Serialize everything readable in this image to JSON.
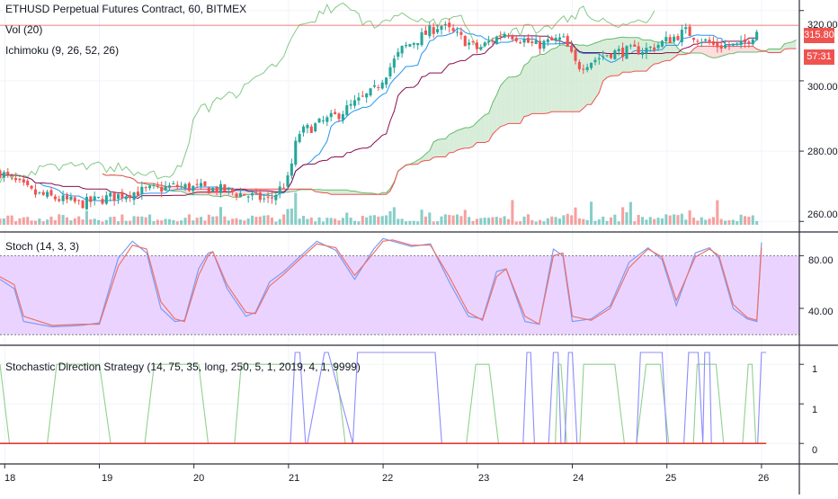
{
  "chart": {
    "title": "ETHUSD Perpetual Futures Contract, 60, BITMEX",
    "vol_label": "Vol (20)",
    "ichimoku_label": "Ichimoku (9, 26, 52, 26)",
    "stoch_label": "Stoch (14, 3, 3)",
    "strategy_label": "Stochastic Direction Strategy (14, 75, 35, long, 250, 5, 1, 2019, 4, 1, 9999)",
    "last_price": "315.80",
    "countdown": "57:31",
    "colors": {
      "up": "#26a69a",
      "down": "#ef5350",
      "stoch_k": "#7b9cf5",
      "stoch_d": "#f0706a",
      "stoch_band": "#e6ccff",
      "cloud_green": "#c8e6c9",
      "cloud_red": "#ffcdd2",
      "strategy_green": "#8fd18f",
      "strategy_blue": "#8c8cff",
      "strategy_red": "#e53935"
    }
  },
  "chart_data": [
    {
      "type": "candlestick",
      "title": "ETHUSD Perpetual Futures Contract, 60, BITMEX",
      "x_ticks": [
        "18",
        "19",
        "20",
        "21",
        "22",
        "23",
        "24",
        "25",
        "26"
      ],
      "y_ticks": [
        "260.00",
        "280.00",
        "300.00",
        "320.00"
      ],
      "ylim": [
        257,
        323
      ],
      "last_price": 315.8,
      "grid": true,
      "close_path_approx": [
        {
          "day": 17.95,
          "close": 274
        },
        {
          "day": 18.3,
          "close": 268
        },
        {
          "day": 18.8,
          "close": 265
        },
        {
          "day": 19.3,
          "close": 268
        },
        {
          "day": 19.8,
          "close": 270
        },
        {
          "day": 20.3,
          "close": 269
        },
        {
          "day": 20.8,
          "close": 266
        },
        {
          "day": 21.0,
          "close": 272
        },
        {
          "day": 21.1,
          "close": 285
        },
        {
          "day": 21.5,
          "close": 290
        },
        {
          "day": 21.9,
          "close": 297
        },
        {
          "day": 22.2,
          "close": 309
        },
        {
          "day": 22.6,
          "close": 316
        },
        {
          "day": 23.0,
          "close": 309
        },
        {
          "day": 23.3,
          "close": 314
        },
        {
          "day": 23.6,
          "close": 310
        },
        {
          "day": 23.9,
          "close": 312
        },
        {
          "day": 24.05,
          "close": 304
        },
        {
          "day": 24.4,
          "close": 308
        },
        {
          "day": 24.8,
          "close": 309
        },
        {
          "day": 25.2,
          "close": 314
        },
        {
          "day": 25.5,
          "close": 310
        },
        {
          "day": 25.8,
          "close": 310
        },
        {
          "day": 26.0,
          "close": 315.8
        }
      ]
    },
    {
      "type": "line",
      "title": "Stoch (14, 3, 3)",
      "x_ticks": [
        "18",
        "19",
        "20",
        "21",
        "22",
        "23",
        "24",
        "25",
        "26"
      ],
      "y_ticks": [
        "40.00",
        "80.00"
      ],
      "ylim": [
        12,
        98
      ],
      "bands": [
        20,
        80
      ],
      "series": [
        {
          "x": [
            17.95,
            18.1,
            18.2,
            18.5,
            18.8,
            19.0,
            19.2,
            19.35,
            19.5,
            19.65,
            19.8,
            19.9,
            20.05,
            20.15,
            20.2,
            20.35,
            20.55,
            20.65,
            20.8,
            20.95,
            21.1,
            21.3,
            21.5,
            21.7,
            21.9,
            22.0,
            22.1,
            22.3,
            22.5,
            22.7,
            22.9,
            23.05,
            23.2,
            23.3,
            23.5,
            23.65,
            23.8,
            23.9,
            24.0,
            24.2,
            24.4,
            24.6,
            24.8,
            24.95,
            25.1,
            25.3,
            25.45,
            25.55,
            25.7,
            25.85,
            25.95,
            26.0
          ],
          "values": [
            62,
            55,
            30,
            26,
            27,
            29,
            78,
            91,
            82,
            40,
            30,
            31,
            70,
            82,
            83,
            55,
            34,
            37,
            60,
            68,
            78,
            91,
            84,
            62,
            85,
            93,
            91,
            87,
            89,
            60,
            34,
            32,
            68,
            70,
            30,
            28,
            85,
            80,
            30,
            32,
            42,
            75,
            86,
            77,
            42,
            82,
            86,
            78,
            40,
            32,
            30,
            90
          ]
        },
        {
          "x": [
            17.95,
            18.1,
            18.2,
            18.5,
            18.8,
            19.0,
            19.2,
            19.35,
            19.5,
            19.65,
            19.8,
            19.9,
            20.05,
            20.15,
            20.2,
            20.35,
            20.55,
            20.65,
            20.8,
            20.95,
            21.1,
            21.3,
            21.5,
            21.7,
            21.9,
            22.0,
            22.1,
            22.3,
            22.5,
            22.7,
            22.9,
            23.05,
            23.2,
            23.3,
            23.5,
            23.65,
            23.8,
            23.9,
            24.0,
            24.2,
            24.4,
            24.6,
            24.8,
            24.95,
            25.1,
            25.3,
            25.45,
            25.55,
            25.7,
            25.85,
            25.95,
            26.0
          ],
          "values": [
            64,
            58,
            34,
            27,
            28,
            28,
            72,
            88,
            85,
            45,
            32,
            30,
            65,
            80,
            83,
            58,
            37,
            36,
            57,
            66,
            76,
            89,
            86,
            65,
            82,
            91,
            92,
            88,
            88,
            64,
            37,
            31,
            64,
            70,
            34,
            28,
            80,
            82,
            34,
            31,
            40,
            71,
            85,
            79,
            46,
            79,
            85,
            80,
            43,
            33,
            31,
            86
          ]
        }
      ]
    },
    {
      "type": "line",
      "title": "Stochastic Direction Strategy (14, 75, 35, long, 250, 5, 1, 2019, 4, 1, 9999)",
      "x_ticks": [
        "18",
        "19",
        "20",
        "21",
        "22",
        "23",
        "24",
        "25",
        "26"
      ],
      "y_ticks": [
        "0",
        "1"
      ],
      "ylim": [
        -0.1,
        1.15
      ],
      "series": [
        {
          "x": [
            17.95,
            18.05,
            18.45,
            18.55,
            19.0,
            19.12,
            19.48,
            19.58,
            20.05,
            20.15,
            20.43,
            20.5,
            21.5,
            21.6,
            22.88,
            22.98,
            23.12,
            23.22,
            23.82,
            23.85,
            23.88,
            23.94,
            24.08,
            24.12,
            24.45,
            24.55,
            24.68,
            24.78,
            24.93,
            25.02,
            25.28,
            25.32,
            25.52,
            25.6,
            25.8,
            25.86,
            25.9,
            25.94,
            26.05
          ],
          "values": [
            1,
            0,
            0,
            1,
            1,
            0,
            0,
            1,
            1,
            0,
            0,
            1,
            1,
            0,
            0,
            1,
            1,
            0,
            0,
            1,
            1,
            0,
            0,
            1,
            1,
            0,
            0,
            1,
            1,
            0,
            0,
            1,
            1,
            0,
            0,
            1,
            1,
            0,
            0
          ]
        },
        {
          "x": [
            17.95,
            21.02,
            21.07,
            21.12,
            21.18,
            21.2,
            21.38,
            21.42,
            21.68,
            21.73,
            22.55,
            22.62,
            23.48,
            23.52,
            23.56,
            23.6,
            23.75,
            23.8,
            23.85,
            23.88,
            23.92,
            23.96,
            24.0,
            24.05,
            24.68,
            24.72,
            24.95,
            25.0,
            25.18,
            25.23,
            25.33,
            25.38,
            25.4,
            25.45,
            25.47,
            25.53,
            25.96,
            26.0,
            26.05
          ],
          "values": [
            0,
            0,
            1.15,
            1.15,
            0,
            0,
            1.15,
            1.15,
            0,
            1.15,
            1.15,
            0,
            0,
            1.15,
            1.15,
            0,
            0,
            1.15,
            1.15,
            0,
            0,
            1.15,
            1.15,
            0,
            0,
            1.15,
            1.15,
            0,
            0,
            1.15,
            1.15,
            0,
            1.15,
            1.15,
            0,
            0,
            0,
            1.15,
            1.15
          ]
        },
        {
          "x": [
            17.95,
            26.05
          ],
          "values": [
            0,
            0
          ]
        }
      ]
    }
  ]
}
